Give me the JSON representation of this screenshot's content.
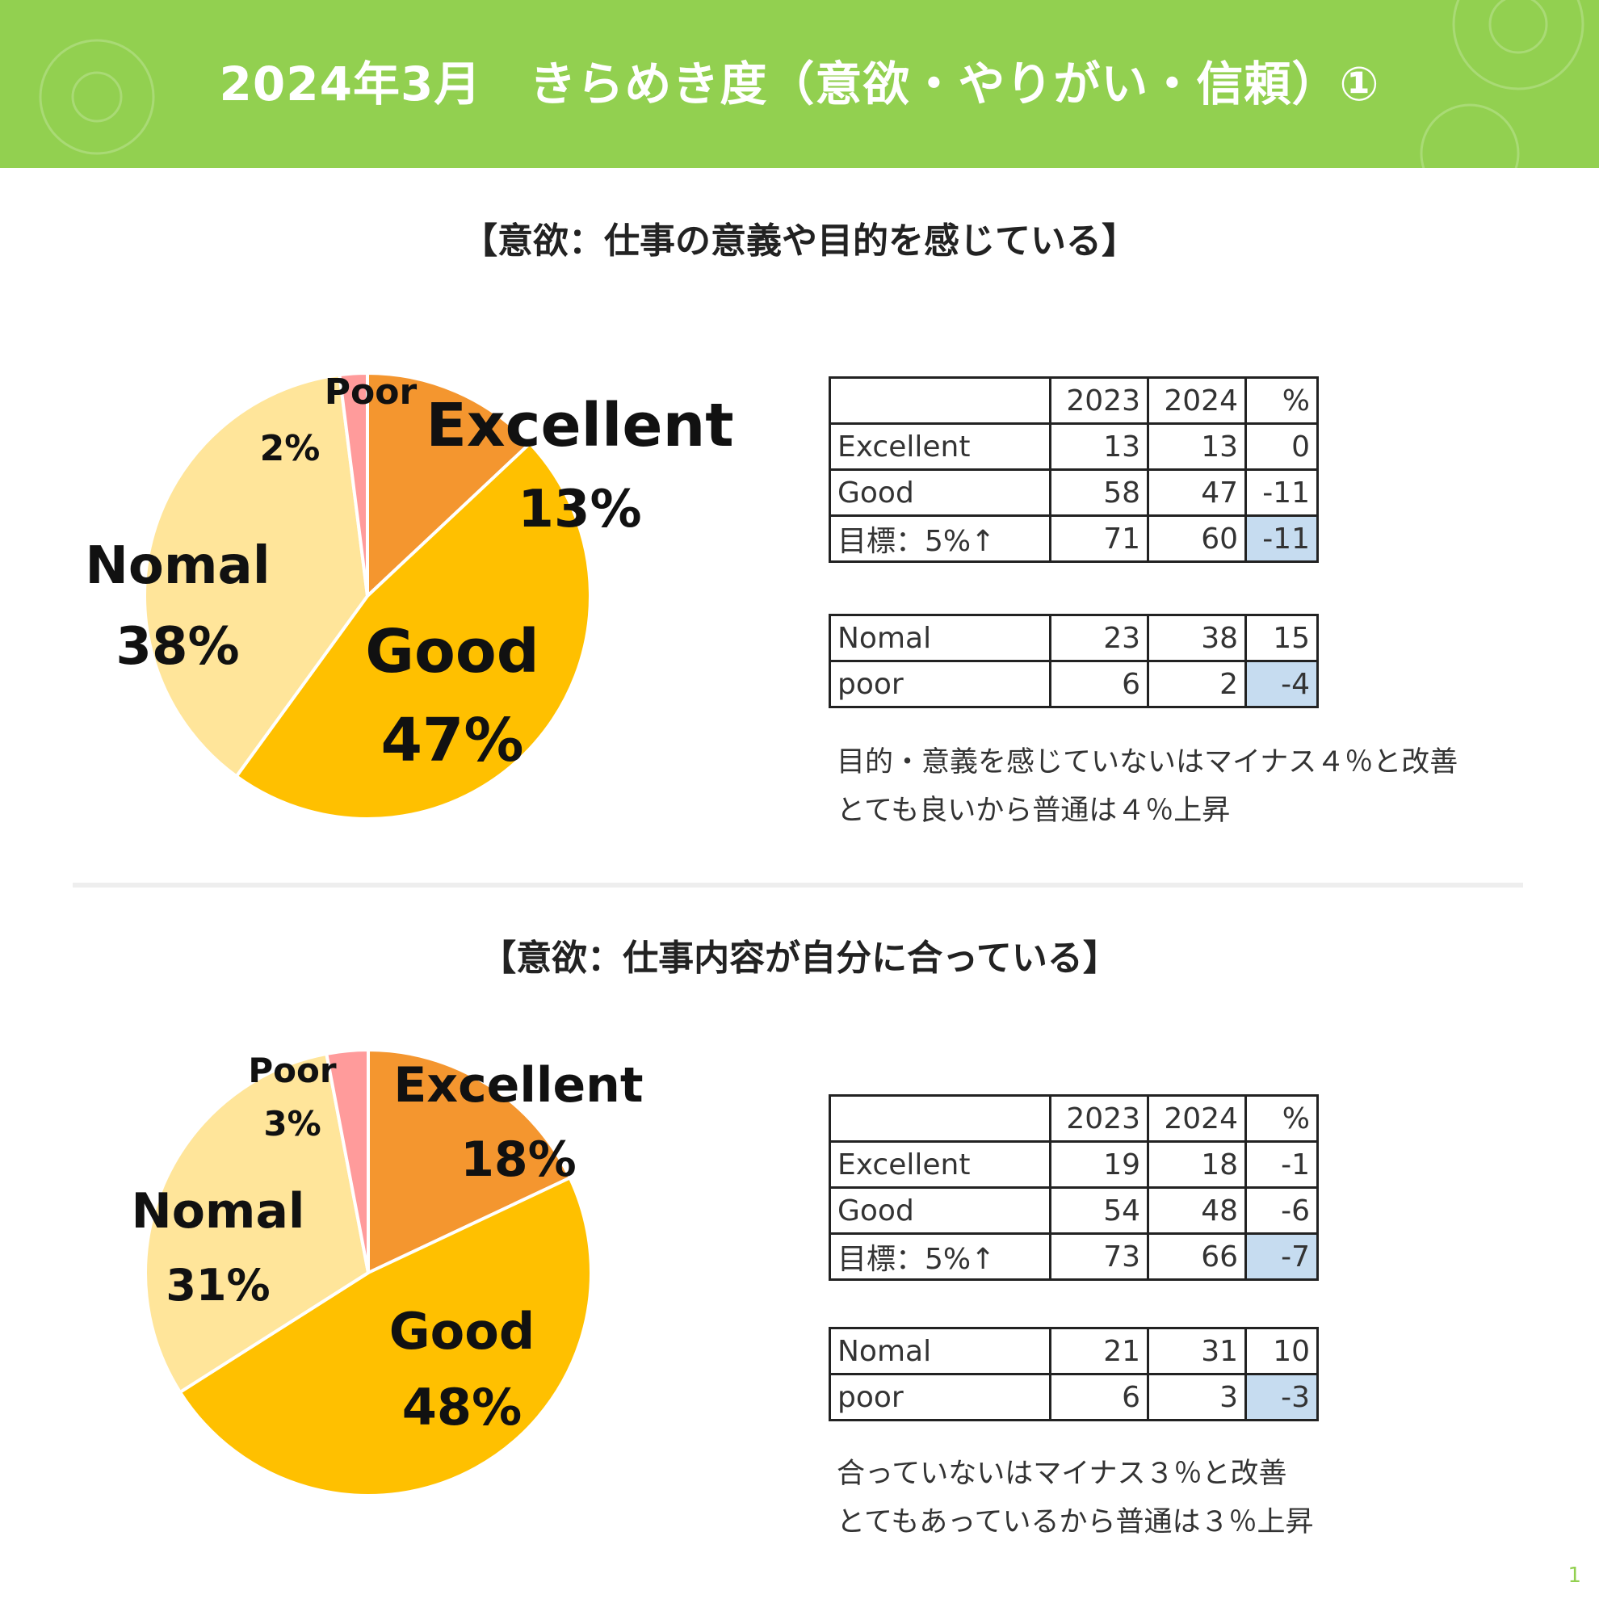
{
  "header": {
    "title": "2024年3月　きらめき度（意欲・やりがい・信頼）①",
    "bg_color": "#92d050"
  },
  "colors": {
    "excellent": "#f4962f",
    "good": "#ffc000",
    "nomal": "#ffe59a",
    "poor": "#ff9b9b",
    "highlight": "#c6dcf0"
  },
  "sections": [
    {
      "title": "【意欲：仕事の意義や目的を感じている】",
      "pie_labels": [
        {
          "name": "Excellent",
          "value": "13%"
        },
        {
          "name": "Good",
          "value": "47%"
        },
        {
          "name": "Nomal",
          "value": "38%"
        },
        {
          "name": "Poor",
          "value": "2%"
        }
      ],
      "table_head": [
        "",
        "2023",
        "2024",
        "%"
      ],
      "table_rows": [
        [
          "Excellent",
          "13",
          "13",
          "0"
        ],
        [
          "Good",
          "58",
          "47",
          "-11"
        ],
        [
          "目標：5%↑",
          "71",
          "60",
          "-11"
        ]
      ],
      "table2_rows": [
        [
          "Nomal",
          "23",
          "38",
          "15"
        ],
        [
          "poor",
          "6",
          "2",
          "-4"
        ]
      ],
      "notes": [
        "目的・意義を感じていないはマイナス４％と改善",
        "とても良いから普通は４％上昇"
      ]
    },
    {
      "title": "【意欲：仕事内容が自分に合っている】",
      "pie_labels": [
        {
          "name": "Excellent",
          "value": "18%"
        },
        {
          "name": "Good",
          "value": "48%"
        },
        {
          "name": "Nomal",
          "value": "31%"
        },
        {
          "name": "Poor",
          "value": "3%"
        }
      ],
      "table_head": [
        "",
        "2023",
        "2024",
        "%"
      ],
      "table_rows": [
        [
          "Excellent",
          "19",
          "18",
          "-1"
        ],
        [
          "Good",
          "54",
          "48",
          "-6"
        ],
        [
          "目標：5%↑",
          "73",
          "66",
          "-7"
        ]
      ],
      "table2_rows": [
        [
          "Nomal",
          "21",
          "31",
          "10"
        ],
        [
          "poor",
          "6",
          "3",
          "-3"
        ]
      ],
      "notes": [
        "合っていないはマイナス３％と改善",
        "とてもあっているから普通は３％上昇"
      ]
    }
  ],
  "page_number": "1",
  "chart_data": [
    {
      "type": "pie",
      "categories": [
        "Excellent",
        "Good",
        "Nomal",
        "Poor"
      ],
      "values": [
        13,
        47,
        38,
        2
      ]
    },
    {
      "type": "pie",
      "categories": [
        "Excellent",
        "Good",
        "Nomal",
        "Poor"
      ],
      "values": [
        18,
        48,
        31,
        3
      ]
    },
    {
      "type": "table",
      "columns": [
        "",
        "2023",
        "2024",
        "%"
      ],
      "rows": [
        [
          "Excellent",
          13,
          13,
          0
        ],
        [
          "Good",
          58,
          47,
          -11
        ],
        [
          "目標：5%↑",
          71,
          60,
          -11
        ],
        [
          "Nomal",
          23,
          38,
          15
        ],
        [
          "poor",
          6,
          2,
          -4
        ]
      ]
    },
    {
      "type": "table",
      "columns": [
        "",
        "2023",
        "2024",
        "%"
      ],
      "rows": [
        [
          "Excellent",
          19,
          18,
          -1
        ],
        [
          "Good",
          54,
          48,
          -6
        ],
        [
          "目標：5%↑",
          73,
          66,
          -7
        ],
        [
          "Nomal",
          21,
          31,
          10
        ],
        [
          "poor",
          6,
          3,
          -3
        ]
      ]
    }
  ]
}
